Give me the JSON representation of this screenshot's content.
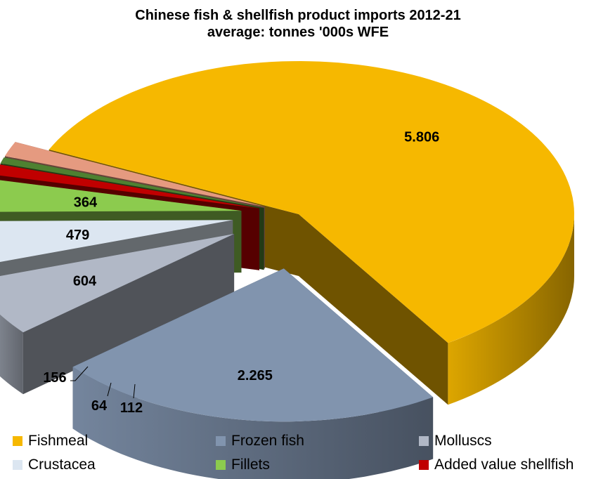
{
  "chart_data": {
    "type": "pie",
    "title": "Chinese fish & shellfish product imports 2012-21",
    "subtitle": "average: tonnes '000s  WFE",
    "slices": [
      {
        "category": "Fishmeal",
        "value": 5806,
        "label": "5.806",
        "color": "#F6B800"
      },
      {
        "category": "Frozen fish",
        "value": 2265,
        "label": "2.265",
        "color": "#8194AE"
      },
      {
        "category": "Molluscs",
        "value": 604,
        "label": "604",
        "color": "#B1B8C6"
      },
      {
        "category": "Crustacea",
        "value": 479,
        "label": "479",
        "color": "#DCE6F1"
      },
      {
        "category": "Fillets",
        "value": 364,
        "label": "364",
        "color": "#8CCB4E"
      },
      {
        "category": "Added value shellfish",
        "value": 112,
        "label": "112",
        "color": "#C00000"
      },
      {
        "category": "",
        "value": 64,
        "label": "64",
        "color": "#4E8131"
      },
      {
        "category": "",
        "value": 156,
        "label": "156",
        "color": "#E59A80"
      }
    ],
    "legend_position": "bottom",
    "legend": [
      {
        "name": "Fishmeal",
        "color": "#F6B800"
      },
      {
        "name": "Frozen fish",
        "color": "#8194AE"
      },
      {
        "name": "Molluscs",
        "color": "#B1B8C6"
      },
      {
        "name": "Crustacea",
        "color": "#DCE6F1"
      },
      {
        "name": "Fillets",
        "color": "#8CCB4E"
      },
      {
        "name": "Added value shellfish",
        "color": "#C00000"
      }
    ]
  }
}
